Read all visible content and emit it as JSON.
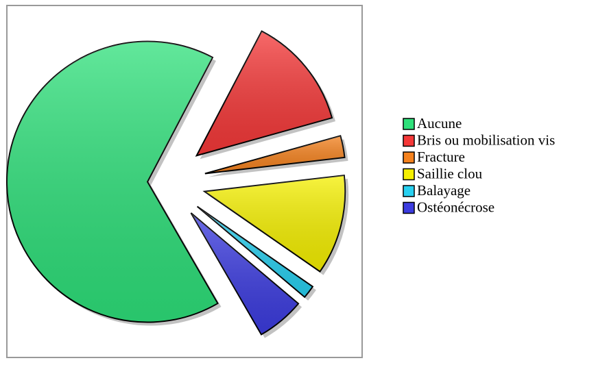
{
  "chart_data": {
    "type": "pie",
    "categories": [
      "Aucune",
      "Bris ou mobilisation vis",
      "Fracture",
      "Saillie clou",
      "Balayage",
      "Ostéonécrose"
    ],
    "values": [
      66,
      13,
      2.5,
      11.5,
      1.5,
      5.5
    ],
    "colors": [
      "#2ee07a",
      "#f53838",
      "#f5821e",
      "#f5f000",
      "#28d0f0",
      "#3c3ce0"
    ],
    "legend": "right"
  }
}
